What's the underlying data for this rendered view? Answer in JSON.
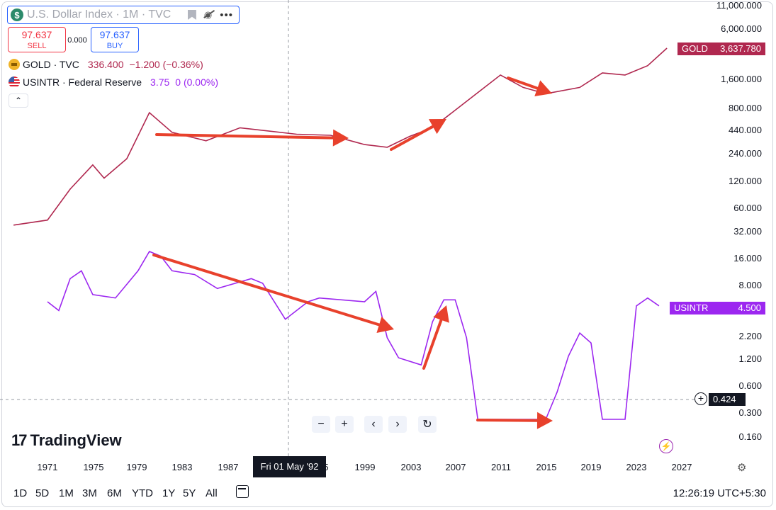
{
  "header": {
    "symbol_badge": "$",
    "title": "U.S. Dollar Index · 1M · TVC",
    "sell_price": "97.637",
    "sell_label": "SELL",
    "spread": "0.000",
    "buy_price": "97.637",
    "buy_label": "BUY",
    "icons": [
      "flag-icon",
      "eye-off-icon",
      "more-dots-icon"
    ]
  },
  "legend": {
    "gold": {
      "name": "GOLD · TVC",
      "value": "336.400",
      "change": "−1.200 (−0.36%)",
      "color": "#b0284f"
    },
    "usintr": {
      "name": "USINTR · Federal Reserve",
      "value": "3.75",
      "change": "0 (0.00%)",
      "color": "#9c27f0"
    },
    "collapse_icon": "chevron-up-icon"
  },
  "price_axis": {
    "labels": [
      "11,000.000",
      "6,000.000",
      "3,637.780",
      "1,600.000",
      "800.000",
      "440.000",
      "240.000",
      "120.000",
      "60.000",
      "32.000",
      "16.000",
      "8.000",
      "4.500",
      "2.200",
      "1.200",
      "0.600",
      "0.424",
      "0.300",
      "0.160"
    ],
    "gold_tag": {
      "symbol": "GOLD",
      "value": "3,637.780"
    },
    "usintr_tag": {
      "symbol": "USINTR",
      "value": "4.500"
    },
    "crosshair_value": "0.424"
  },
  "time_axis": {
    "years": [
      "1971",
      "1975",
      "1979",
      "1983",
      "1987",
      "5",
      "1999",
      "2003",
      "2007",
      "2011",
      "2015",
      "2019",
      "2023",
      "2027"
    ],
    "crosshair_date": "Fri 01 May '92"
  },
  "chart_controls": {
    "zoom_out": "−",
    "zoom_in": "+",
    "scroll_left": "‹",
    "scroll_right": "›",
    "reset": "↻"
  },
  "branding": {
    "logo_text": "TradingView",
    "logo_mark": "17"
  },
  "bottom_bar": {
    "ranges": [
      "1D",
      "5D",
      "1M",
      "3M",
      "6M",
      "YTD",
      "1Y",
      "5Y",
      "All"
    ],
    "time": "12:26:19 UTC+5:30"
  },
  "chart_data": {
    "type": "line",
    "scale": "log",
    "series": [
      {
        "name": "GOLD",
        "color": "#b0284f",
        "x": [
          1968,
          1971,
          1973,
          1975,
          1976,
          1978,
          1980,
          1982,
          1985,
          1988,
          1993,
          1996,
          1999,
          2001,
          2003,
          2005,
          2008,
          2011,
          2013,
          2015,
          2018,
          2020,
          2022,
          2024,
          2025.7
        ],
        "y": [
          35,
          40,
          90,
          170,
          120,
          200,
          670,
          400,
          320,
          450,
          380,
          370,
          290,
          270,
          360,
          450,
          900,
          1800,
          1300,
          1100,
          1300,
          1900,
          1800,
          2300,
          3637.78
        ]
      },
      {
        "name": "USINTR",
        "color": "#9c27f0",
        "x": [
          1971,
          1972,
          1973,
          1974,
          1975,
          1977,
          1979,
          1980,
          1981,
          1982,
          1984,
          1986,
          1989,
          1990,
          1992,
          1994,
          1995,
          1999,
          2000,
          2001,
          2002,
          2004,
          2005,
          2006,
          2007,
          2008,
          2009,
          2015,
          2016,
          2017,
          2018,
          2019,
          2020,
          2022,
          2023,
          2024,
          2025
        ],
        "y": [
          5,
          4,
          9,
          11,
          6,
          5.5,
          11,
          18,
          16,
          11,
          10,
          7,
          9,
          8,
          3.2,
          5,
          5.5,
          5,
          6.5,
          2,
          1.2,
          1,
          3,
          5.25,
          5.25,
          2,
          0.25,
          0.25,
          0.5,
          1.25,
          2.25,
          1.75,
          0.25,
          0.25,
          4.5,
          5.5,
          4.5
        ]
      }
    ],
    "annotations": [
      "red arrow 1980-1996 gold flat",
      "red arrow 2001-2006 gold rise",
      "red arrow 2012-2015 gold decline",
      "red arrow 1980-2001 rates decline",
      "red arrow 2004-2006 rates rise",
      "red arrow 2009-2015 rates flat"
    ]
  }
}
